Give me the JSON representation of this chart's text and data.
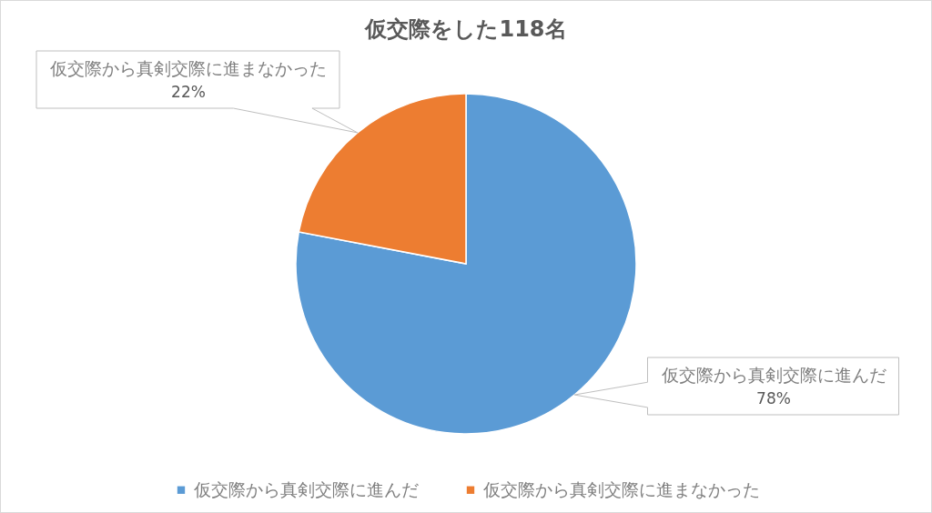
{
  "chart_data": {
    "type": "pie",
    "title": "仮交際をした118名",
    "categories": [
      "仮交際から真剣交際に進んだ",
      "仮交際から真剣交際に進まなかった"
    ],
    "values": [
      78,
      22
    ],
    "colors": [
      "#5b9bd5",
      "#ed7d31"
    ],
    "value_labels": [
      "78%",
      "22%"
    ],
    "legend": "bottom"
  }
}
